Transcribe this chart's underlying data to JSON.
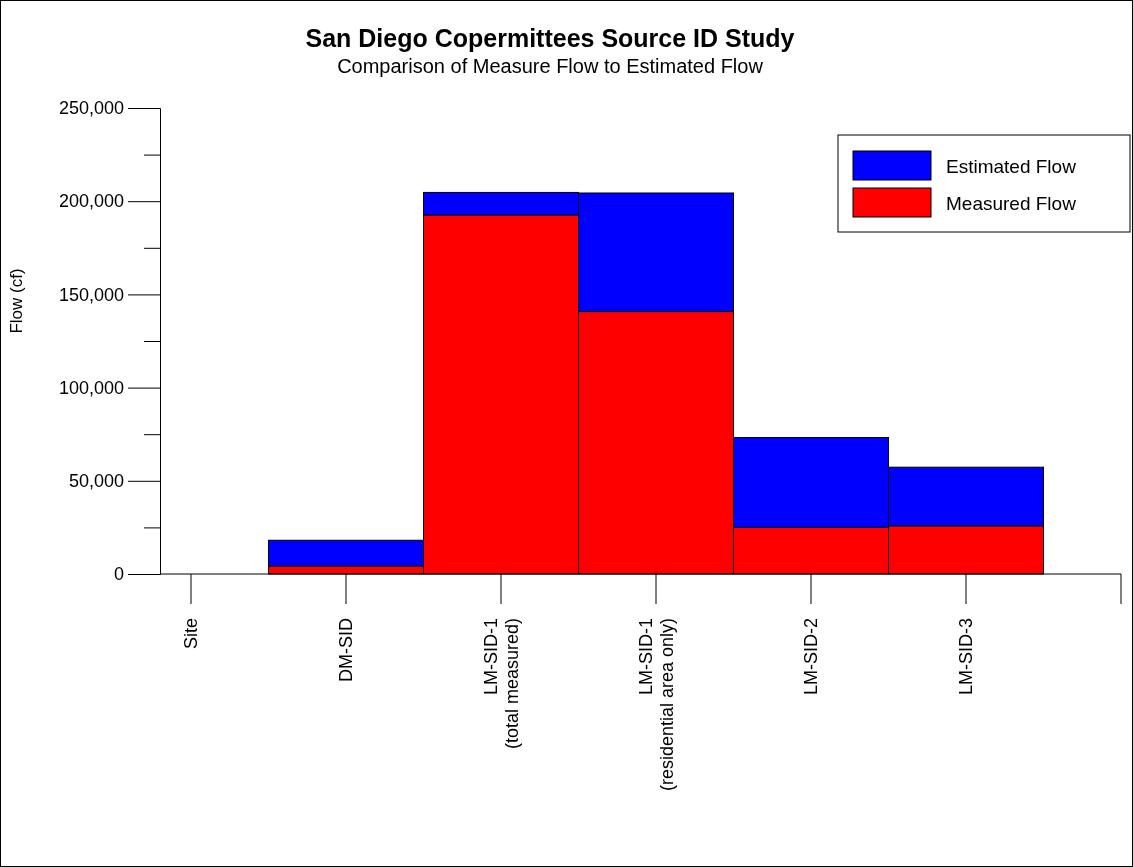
{
  "chart_data": {
    "type": "bar",
    "title": "San Diego Copermittees Source ID Study",
    "subtitle": "Comparison of Measure Flow to Estimated Flow",
    "ylabel": "Flow (cf)",
    "categories": [
      "Site",
      "DM-SID",
      "LM-SID-1\n(total measured)",
      "LM-SID-1\n(residential area only)",
      "LM-SID-2",
      "LM-SID-3",
      null
    ],
    "stacked": true,
    "series": [
      {
        "name": "Measured Flow",
        "color": "#ff0000",
        "values": [
          null,
          4300,
          192600,
          140800,
          25000,
          25800,
          null
        ]
      },
      {
        "name": "Estimated Flow",
        "color": "#0000ff",
        "values": [
          null,
          13800,
          12100,
          63600,
          48200,
          31500,
          null
        ]
      }
    ],
    "ylim": [
      0,
      250000
    ],
    "yticks": [
      0,
      {
        "value": 25000,
        "label": null
      },
      {
        "value": 50000,
        "label": "50,000"
      },
      {
        "value": 75000,
        "label": null
      },
      {
        "value": 100000,
        "label": "100,000"
      },
      {
        "value": 125000,
        "label": null
      },
      {
        "value": 150000,
        "label": "150,000"
      },
      {
        "value": 175000,
        "label": null
      },
      {
        "value": 200000,
        "label": "200,000"
      },
      {
        "value": 225000,
        "label": null
      },
      {
        "value": 250000,
        "label": "250,000"
      }
    ],
    "legend": "top right"
  }
}
